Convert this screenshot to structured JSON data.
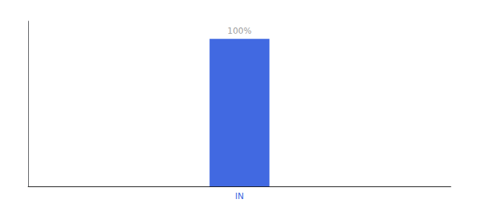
{
  "chart_data": {
    "type": "bar",
    "categories": [
      "IN"
    ],
    "values": [
      100
    ],
    "value_labels": [
      "100%"
    ],
    "color": "#4169e1",
    "ylim": [
      0,
      112
    ],
    "grid": false,
    "data_labels": true,
    "tick_labels": "x"
  }
}
